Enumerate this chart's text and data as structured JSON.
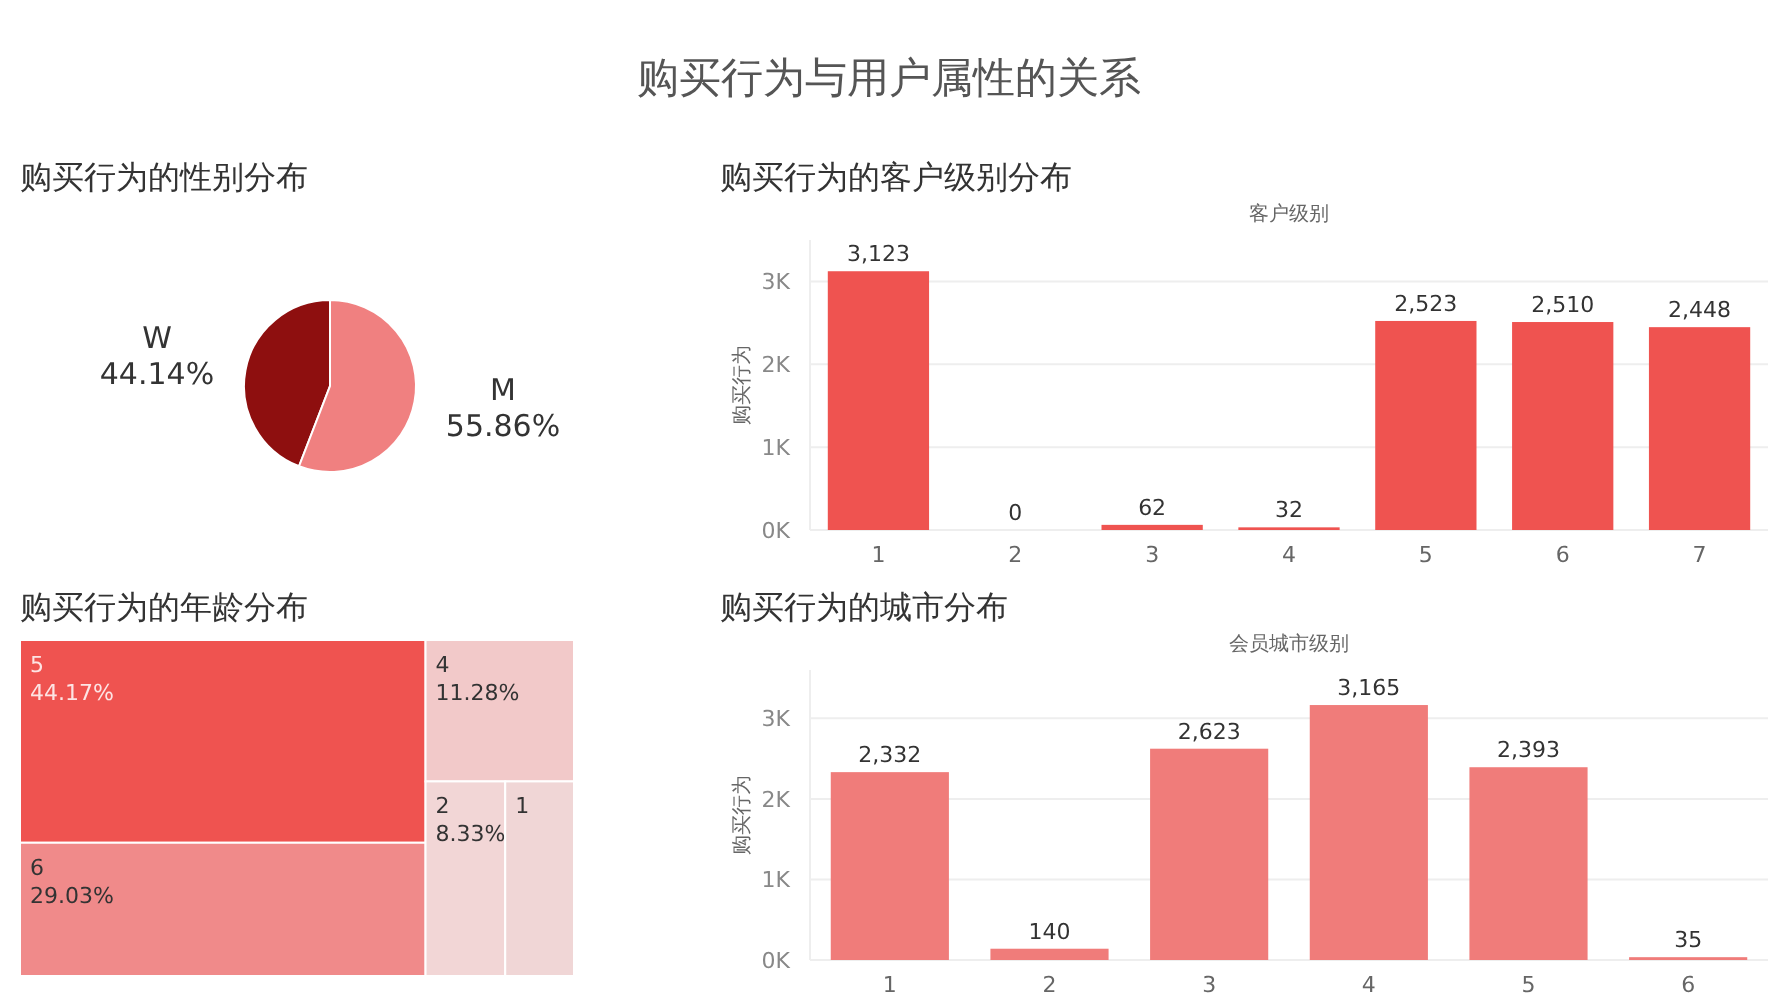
{
  "chart_data": [
    {
      "type": "other",
      "title": "购买行为与用户属性的关系"
    },
    {
      "type": "pie",
      "title": "购买行为的性别分布",
      "categories": [
        "W",
        "M"
      ],
      "values": [
        44.14,
        55.86
      ],
      "colors": [
        "#8e0f0f",
        "#f08080"
      ],
      "value_labels": [
        "44.14%",
        "55.86%"
      ]
    },
    {
      "type": "bar",
      "title": "购买行为的客户级别分布",
      "xlabel": "客户级别",
      "ylabel": "购买行为",
      "categories": [
        "1",
        "2",
        "3",
        "4",
        "5",
        "6",
        "7"
      ],
      "values": [
        3123,
        0,
        62,
        32,
        2523,
        2510,
        2448
      ],
      "value_labels": [
        "3,123",
        "0",
        "62",
        "32",
        "2,523",
        "2,510",
        "2,448"
      ],
      "color": "#ef5350",
      "ylim": [
        0,
        3500
      ],
      "yticks": [
        {
          "value": 0,
          "label": "0K"
        },
        {
          "value": 1000,
          "label": "1K"
        },
        {
          "value": 2000,
          "label": "2K"
        },
        {
          "value": 3000,
          "label": "3K"
        }
      ],
      "grid": "y"
    },
    {
      "type": "other",
      "title": "购买行为的年龄分布",
      "categories": [
        "5",
        "6",
        "4",
        "2",
        "1"
      ],
      "values": [
        44.17,
        29.03,
        11.28,
        8.33,
        null
      ],
      "value_labels": [
        "44.17%",
        "29.03%",
        "11.28%",
        "8.33%",
        null
      ],
      "colors": [
        "#ef5350",
        "#f08a8a",
        "#f2c9c9",
        "#f2d6d6",
        "#f0d6d6"
      ]
    },
    {
      "type": "bar",
      "title": "购买行为的城市分布",
      "xlabel": "会员城市级别",
      "ylabel": "购买行为",
      "categories": [
        "1",
        "2",
        "3",
        "4",
        "5",
        "6"
      ],
      "values": [
        2332,
        140,
        2623,
        3165,
        2393,
        35
      ],
      "value_labels": [
        "2,332",
        "140",
        "2,623",
        "3,165",
        "2,393",
        "35"
      ],
      "color": "#f07c7a",
      "ylim": [
        0,
        3600
      ],
      "yticks": [
        {
          "value": 0,
          "label": "0K"
        },
        {
          "value": 1000,
          "label": "1K"
        },
        {
          "value": 2000,
          "label": "2K"
        },
        {
          "value": 3000,
          "label": "3K"
        }
      ],
      "grid": "y"
    }
  ]
}
